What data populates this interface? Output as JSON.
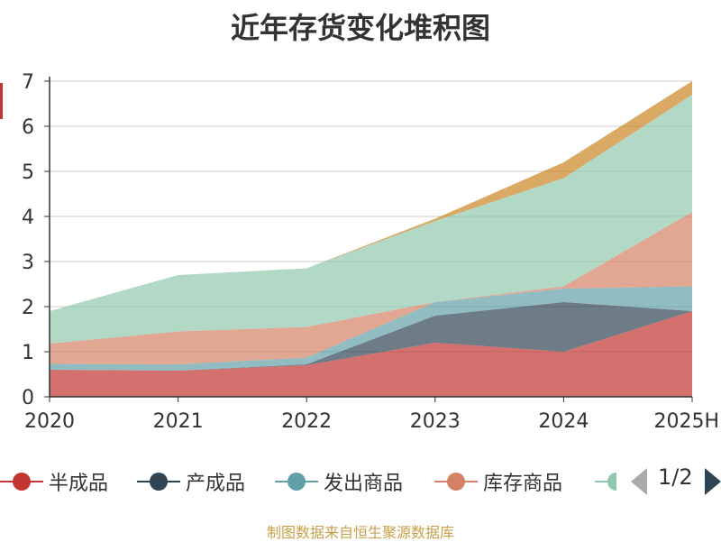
{
  "title": "近年存货变化堆积图",
  "footer": "制图数据来自恒生聚源数据库",
  "colors": {
    "axis_accent": "#c23531",
    "axis": "#333333",
    "grid": "#cccccc"
  },
  "pager": {
    "text": "1/2",
    "prev_icon": "triangle-left",
    "next_icon": "triangle-right"
  },
  "chart_data": {
    "type": "area",
    "stacked": true,
    "title": "近年存货变化堆积图",
    "categories": [
      "2020",
      "2021",
      "2022",
      "2023",
      "2024",
      "2025H"
    ],
    "ylim": [
      0,
      7
    ],
    "yticks": [
      "0",
      "1",
      "2",
      "3",
      "4",
      "5",
      "6",
      "7"
    ],
    "grid": true,
    "legend_position": "bottom",
    "series": [
      {
        "name": "半成品",
        "color": "#c23531",
        "values": [
          0.6,
          0.58,
          0.7,
          1.2,
          1.0,
          1.9
        ]
      },
      {
        "name": "产成品",
        "color": "#2f4554",
        "values": [
          0.0,
          0.0,
          0.02,
          0.6,
          1.1,
          0.0
        ]
      },
      {
        "name": "发出商品",
        "color": "#61a0a8",
        "values": [
          0.13,
          0.14,
          0.15,
          0.3,
          0.3,
          0.55
        ]
      },
      {
        "name": "库存商品",
        "color": "#d48265",
        "values": [
          0.45,
          0.73,
          0.68,
          0.0,
          0.05,
          1.65
        ]
      },
      {
        "name": "",
        "color": "#91c7ae",
        "values": [
          0.72,
          1.25,
          1.3,
          1.8,
          2.4,
          2.6
        ]
      },
      {
        "name": "",
        "color": "#ca8622",
        "values": [
          0.0,
          0.0,
          0.0,
          0.05,
          0.35,
          0.3
        ]
      }
    ]
  },
  "legend_visible": [
    "半成品",
    "产成品",
    "发出商品",
    "库存商品",
    ""
  ]
}
